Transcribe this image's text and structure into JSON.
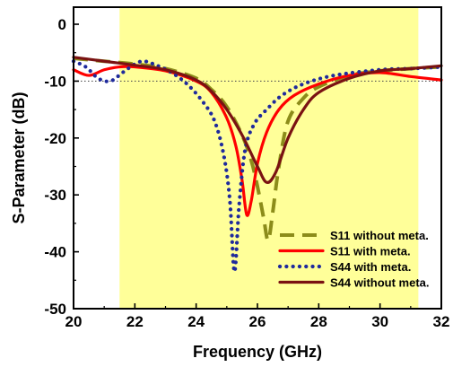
{
  "chart_data": {
    "type": "line",
    "title": "",
    "xlabel": "Frequency (GHz)",
    "ylabel": "S-Parameter (dB)",
    "xlim": [
      20,
      32
    ],
    "ylim": [
      -50,
      3
    ],
    "xticks": [
      20,
      22,
      24,
      26,
      28,
      30,
      32
    ],
    "yticks": [
      0,
      -10,
      -20,
      -30,
      -40,
      -50
    ],
    "grid": false,
    "highlight_band": {
      "x_start": 21.5,
      "x_end": 31.25,
      "color": "#ffff99"
    },
    "reference_line": {
      "y": -10,
      "style": "dotted",
      "color": "#555555"
    },
    "legend_position": "lower-right",
    "series": [
      {
        "name": "S11 without meta.",
        "color": "#8c8c1a",
        "style": "dashed",
        "points": [
          [
            20,
            -6.0
          ],
          [
            21,
            -6.5
          ],
          [
            22,
            -7.0
          ],
          [
            23,
            -7.8
          ],
          [
            24,
            -9.5
          ],
          [
            24.5,
            -11.5
          ],
          [
            25,
            -14.5
          ],
          [
            25.5,
            -19.5
          ],
          [
            25.8,
            -24.0
          ],
          [
            26.0,
            -28.5
          ],
          [
            26.2,
            -34.0
          ],
          [
            26.35,
            -38.0
          ],
          [
            26.5,
            -33.0
          ],
          [
            26.7,
            -25.0
          ],
          [
            27.0,
            -17.0
          ],
          [
            27.5,
            -13.0
          ],
          [
            28,
            -11.0
          ],
          [
            29,
            -9.0
          ],
          [
            30,
            -8.2
          ],
          [
            31,
            -7.8
          ],
          [
            32,
            -7.5
          ]
        ]
      },
      {
        "name": "S11 with meta.",
        "color": "#ff0000",
        "style": "solid",
        "points": [
          [
            20,
            -8.0
          ],
          [
            20.5,
            -9.0
          ],
          [
            21,
            -8.0
          ],
          [
            21.5,
            -7.5
          ],
          [
            22,
            -7.5
          ],
          [
            23,
            -8.2
          ],
          [
            24,
            -10.0
          ],
          [
            24.5,
            -12.0
          ],
          [
            25,
            -16.5
          ],
          [
            25.3,
            -21.5
          ],
          [
            25.5,
            -27.5
          ],
          [
            25.65,
            -33.5
          ],
          [
            25.8,
            -31.0
          ],
          [
            26.0,
            -24.5
          ],
          [
            26.3,
            -19.0
          ],
          [
            26.7,
            -15.0
          ],
          [
            27.2,
            -12.5
          ],
          [
            28,
            -10.5
          ],
          [
            29,
            -9.0
          ],
          [
            30,
            -8.5
          ],
          [
            31,
            -9.2
          ],
          [
            32,
            -9.8
          ]
        ]
      },
      {
        "name": "S44 with meta.",
        "color": "#1f2a9c",
        "style": "dotted",
        "points": [
          [
            20,
            -6.5
          ],
          [
            20.4,
            -7.5
          ],
          [
            20.8,
            -9.5
          ],
          [
            21.2,
            -10.0
          ],
          [
            21.6,
            -8.5
          ],
          [
            22,
            -7.0
          ],
          [
            22.3,
            -6.5
          ],
          [
            22.7,
            -7.2
          ],
          [
            23.2,
            -8.5
          ],
          [
            23.7,
            -10.5
          ],
          [
            24.2,
            -13.5
          ],
          [
            24.6,
            -17.0
          ],
          [
            24.9,
            -23.0
          ],
          [
            25.1,
            -31.0
          ],
          [
            25.25,
            -43.5
          ],
          [
            25.4,
            -32.0
          ],
          [
            25.6,
            -22.0
          ],
          [
            25.9,
            -17.5
          ],
          [
            26.3,
            -15.0
          ],
          [
            26.8,
            -12.5
          ],
          [
            27.5,
            -10.5
          ],
          [
            28.5,
            -9.0
          ],
          [
            30,
            -8.0
          ],
          [
            31,
            -7.8
          ],
          [
            32,
            -7.5
          ]
        ]
      },
      {
        "name": "S44 without meta.",
        "color": "#7a1212",
        "style": "solid",
        "points": [
          [
            20,
            -5.8
          ],
          [
            21,
            -6.5
          ],
          [
            22,
            -7.2
          ],
          [
            23,
            -8.0
          ],
          [
            24,
            -9.8
          ],
          [
            24.5,
            -11.8
          ],
          [
            25,
            -15.0
          ],
          [
            25.5,
            -19.5
          ],
          [
            26.0,
            -25.0
          ],
          [
            26.3,
            -27.8
          ],
          [
            26.6,
            -26.0
          ],
          [
            27.0,
            -20.0
          ],
          [
            27.5,
            -15.0
          ],
          [
            28,
            -12.0
          ],
          [
            29,
            -9.5
          ],
          [
            30,
            -8.2
          ],
          [
            31,
            -7.8
          ],
          [
            32,
            -7.3
          ]
        ]
      }
    ]
  }
}
